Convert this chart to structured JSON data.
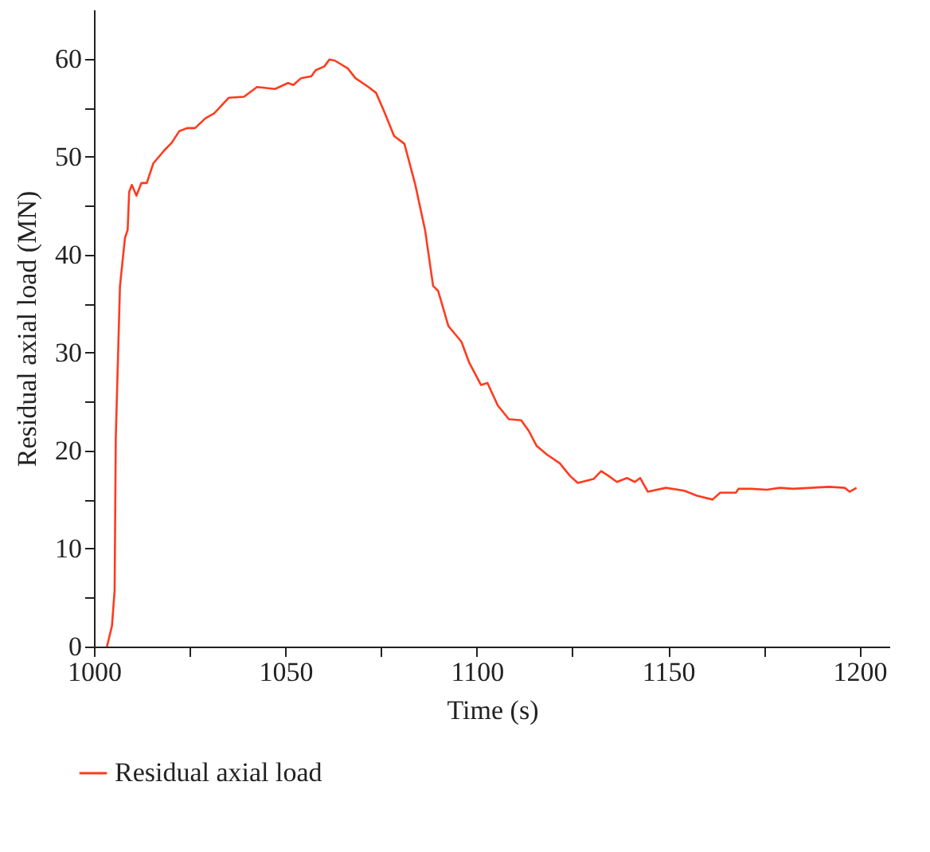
{
  "chart_data": {
    "type": "line",
    "xlabel": "Time (s)",
    "ylabel": "Residual axial load (MN)",
    "xlim": [
      1000,
      1208
    ],
    "ylim": [
      0,
      65
    ],
    "xticks": [
      1000,
      {
        "value": 1025,
        "label": null
      },
      1050,
      {
        "value": 1075,
        "label": null
      },
      1100,
      {
        "value": 1125,
        "label": null
      },
      1150,
      {
        "value": 1175,
        "label": null
      },
      1200
    ],
    "yticks": [
      0,
      {
        "value": 5,
        "label": null
      },
      10,
      {
        "value": 15,
        "label": null
      },
      20,
      {
        "value": 25,
        "label": null
      },
      30,
      {
        "value": 35,
        "label": null
      },
      40,
      {
        "value": 45,
        "label": null
      },
      50,
      {
        "value": 55,
        "label": null
      },
      60
    ],
    "grid": false,
    "legend": "bottom left",
    "marker": "none",
    "line_style": "solid",
    "series": [
      {
        "name": "Residual axial load",
        "color": "#ff3b1f",
        "x": [
          1003.4,
          1004.7,
          1005.4,
          1005.7,
          1006.8,
          1008.1,
          1008.8,
          1009.2,
          1009.9,
          1011.1,
          1012.4,
          1013.8,
          1015.5,
          1018.3,
          1020.3,
          1022.3,
          1024.3,
          1026.4,
          1029.1,
          1031.4,
          1035.2,
          1039.2,
          1042.6,
          1047.3,
          1050.7,
          1052.1,
          1054.1,
          1056.8,
          1057.9,
          1060.2,
          1061.5,
          1062.9,
          1066.3,
          1068.3,
          1071.7,
          1073.7,
          1075.7,
          1078.4,
          1081.1,
          1083.9,
          1086.5,
          1088.6,
          1089.9,
          1092.6,
          1096.0,
          1098.0,
          1101.1,
          1102.8,
          1105.5,
          1108.4,
          1111.6,
          1113.6,
          1115.6,
          1118.3,
          1121.7,
          1124.4,
          1126.4,
          1130.5,
          1132.5,
          1134.5,
          1136.6,
          1139.3,
          1141.3,
          1142.7,
          1144.7,
          1149.4,
          1154.2,
          1157.5,
          1161.6,
          1163.6,
          1167.7,
          1168.4,
          1171.7,
          1175.8,
          1179.2,
          1182.6,
          1187.3,
          1192.0,
          1196.1,
          1197.4,
          1199.2
        ],
        "values": [
          0,
          2.1,
          5.7,
          21.3,
          36.8,
          41.7,
          42.5,
          46.4,
          47.1,
          46.0,
          47.3,
          47.3,
          49.3,
          50.6,
          51.4,
          52.6,
          52.9,
          52.9,
          53.9,
          54.4,
          56.0,
          56.1,
          57.1,
          56.9,
          57.5,
          57.3,
          58.0,
          58.2,
          58.8,
          59.2,
          59.9,
          59.8,
          59.0,
          58.0,
          57.1,
          56.5,
          54.7,
          52.1,
          51.3,
          47.2,
          42.5,
          36.8,
          36.3,
          32.7,
          31.1,
          29.0,
          26.7,
          26.9,
          24.6,
          23.2,
          23.1,
          22.0,
          20.5,
          19.6,
          18.7,
          17.4,
          16.7,
          17.1,
          17.9,
          17.4,
          16.8,
          17.2,
          16.8,
          17.2,
          15.8,
          16.2,
          15.9,
          15.4,
          15.0,
          15.7,
          15.7,
          16.1,
          16.1,
          16.0,
          16.2,
          16.1,
          16.2,
          16.3,
          16.2,
          15.8,
          16.2
        ]
      }
    ]
  }
}
